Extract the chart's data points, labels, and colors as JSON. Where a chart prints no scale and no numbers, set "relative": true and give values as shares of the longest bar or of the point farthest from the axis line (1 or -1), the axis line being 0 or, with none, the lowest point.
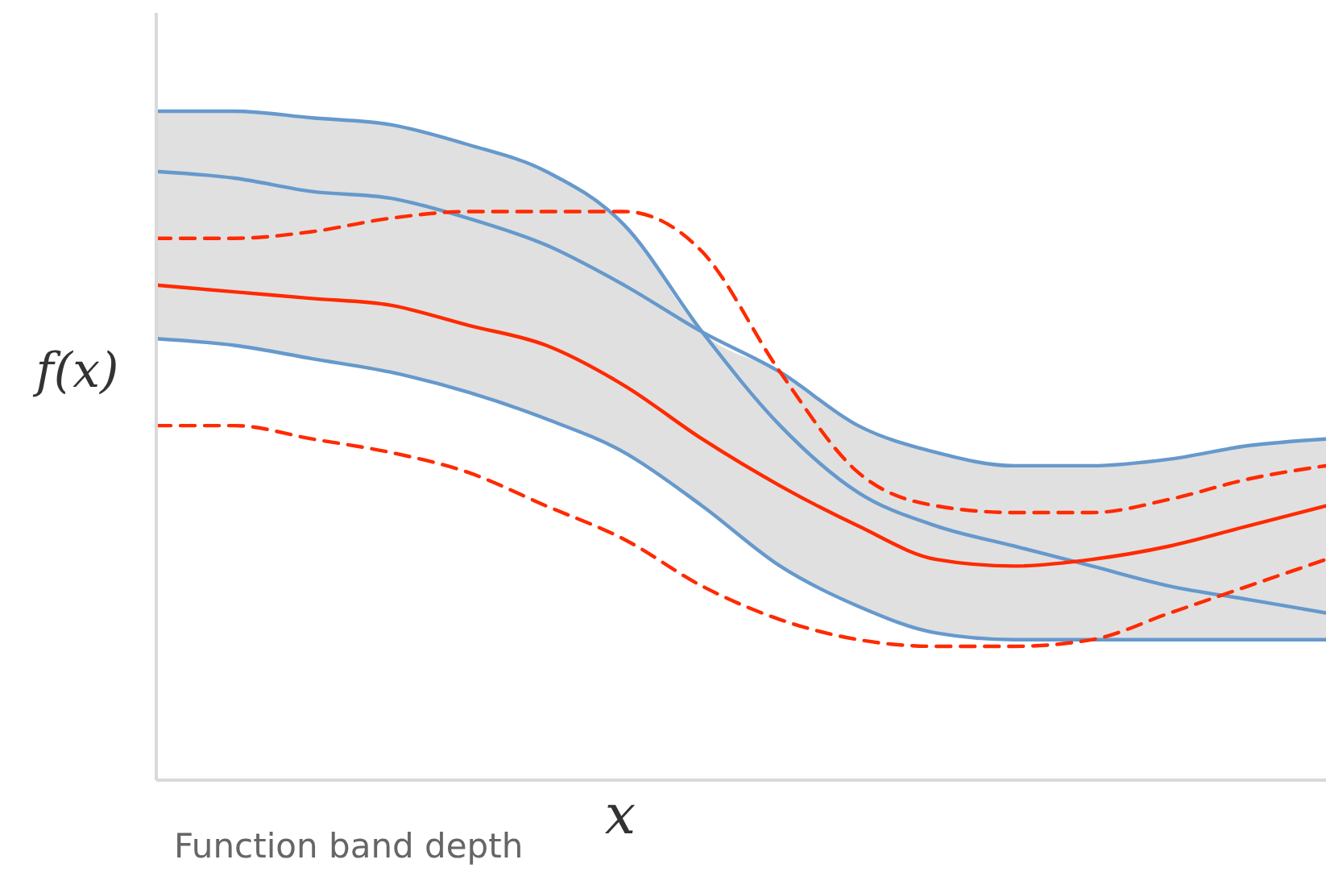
{
  "chart_data": {
    "type": "line",
    "relative": true,
    "xlabel": "x",
    "ylabel": "f(x)",
    "annotations": [
      "Function band depth"
    ],
    "tick_labels": false,
    "grid": false,
    "legend": false,
    "marker": "none",
    "categories": [
      null,
      null,
      null,
      null,
      null,
      null,
      null,
      null,
      null,
      null,
      null,
      null,
      null,
      null,
      null,
      null
    ],
    "series": [
      {
        "color": "#6699cc",
        "line_style": "solid",
        "values": [
          1.0,
          1.0,
          0.99,
          0.98,
          0.95,
          0.91,
          0.83,
          0.67,
          0.53,
          0.43,
          0.38,
          0.35,
          0.32,
          0.29,
          0.27,
          0.25
        ]
      },
      {
        "color": "#6699cc",
        "line_style": "solid",
        "values": [
          0.91,
          0.9,
          0.88,
          0.87,
          0.84,
          0.8,
          0.74,
          0.67,
          0.61,
          0.53,
          0.49,
          0.47,
          0.47,
          0.48,
          0.5,
          0.51
        ],
        "upper": [
          1.0,
          1.0,
          0.99,
          0.98,
          0.95,
          0.91,
          0.83,
          0.67,
          0.61,
          0.53,
          0.49,
          0.47,
          0.47,
          0.48,
          0.5,
          0.51
        ],
        "lower": [
          0.66,
          0.65,
          0.63,
          0.61,
          0.58,
          0.54,
          0.49,
          0.41,
          0.32,
          0.26,
          0.22,
          0.21,
          0.21,
          0.21,
          0.21,
          0.21
        ]
      },
      {
        "color": "#6699cc",
        "line_style": "solid",
        "values": [
          0.66,
          0.65,
          0.63,
          0.61,
          0.58,
          0.54,
          0.49,
          0.41,
          0.32,
          0.26,
          0.22,
          0.21,
          0.21,
          0.21,
          0.21,
          0.21
        ]
      },
      {
        "color": "#ff2a00",
        "line_style": "solid",
        "values": [
          0.74,
          0.73,
          0.72,
          0.71,
          0.68,
          0.65,
          0.59,
          0.51,
          0.44,
          0.38,
          0.33,
          0.32,
          0.33,
          0.35,
          0.38,
          0.41
        ]
      },
      {
        "color": "#ff2a00",
        "line_style": "dashed",
        "values": [
          0.81,
          0.81,
          0.82,
          0.84,
          0.85,
          0.85,
          0.85,
          0.79,
          0.61,
          0.46,
          0.41,
          0.4,
          0.4,
          0.42,
          0.45,
          0.47
        ]
      },
      {
        "color": "#ff2a00",
        "line_style": "dashed",
        "values": [
          0.53,
          0.53,
          0.51,
          0.49,
          0.46,
          0.41,
          0.36,
          0.29,
          0.24,
          0.21,
          0.2,
          0.2,
          0.21,
          0.25,
          0.29,
          0.33
        ]
      }
    ]
  }
}
